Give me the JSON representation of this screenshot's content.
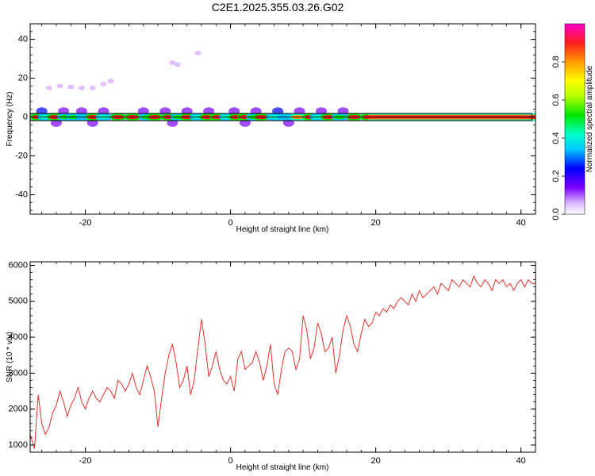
{
  "figure": {
    "title": "C2E1.2025.355.03.26.G02"
  },
  "chart_data": [
    {
      "type": "heatmap",
      "title": "C2E1.2025.355.03.26.G02",
      "xlabel": "Height of straight line (km)",
      "ylabel": "Frequency (Hz)",
      "xlim": [
        -27.6,
        42
      ],
      "ylim": [
        -50,
        48
      ],
      "xticks": [
        -20,
        0,
        20,
        40
      ],
      "yticks": [
        -40,
        -20,
        0,
        20,
        40
      ],
      "grid": false,
      "colorbar": {
        "label": "Normalized spectral amplitude",
        "ticks": [
          0.0,
          0.2,
          0.4,
          0.6,
          0.8
        ],
        "range": [
          0,
          1
        ]
      },
      "model_line_hz": 0,
      "main_band": [
        {
          "x": -26.5,
          "a": 0.95
        },
        {
          "x": -25.5,
          "a": 0.5
        },
        {
          "x": -24.2,
          "a": 0.95
        },
        {
          "x": -22.8,
          "a": 0.55
        },
        {
          "x": -21.5,
          "a": 0.6
        },
        {
          "x": -20.2,
          "a": 0.4
        },
        {
          "x": -18.9,
          "a": 0.95
        },
        {
          "x": -17.5,
          "a": 0.5
        },
        {
          "x": -15.5,
          "a": 0.95
        },
        {
          "x": -13.5,
          "a": 0.95
        },
        {
          "x": -11.5,
          "a": 0.6
        },
        {
          "x": -10.5,
          "a": 0.95
        },
        {
          "x": -8.5,
          "a": 0.9
        },
        {
          "x": -7.2,
          "a": 0.6
        },
        {
          "x": -6.0,
          "a": 0.95
        },
        {
          "x": -4.5,
          "a": 0.5
        },
        {
          "x": -3.2,
          "a": 0.95
        },
        {
          "x": -1.8,
          "a": 0.95
        },
        {
          "x": -0.5,
          "a": 0.5
        },
        {
          "x": 0.8,
          "a": 0.95
        },
        {
          "x": 2.0,
          "a": 0.95
        },
        {
          "x": 3.2,
          "a": 0.6
        },
        {
          "x": 4.2,
          "a": 0.95
        },
        {
          "x": 6.0,
          "a": 0.5
        },
        {
          "x": 7.5,
          "a": 0.4
        },
        {
          "x": 9.2,
          "a": 0.8
        },
        {
          "x": 11.0,
          "a": 0.95
        },
        {
          "x": 12.0,
          "a": 0.5
        },
        {
          "x": 13.5,
          "a": 0.95
        },
        {
          "x": 15.0,
          "a": 0.6
        },
        {
          "x": 17.0,
          "a": 0.95
        },
        {
          "x": 19.0,
          "a": 0.95
        }
      ],
      "side_blobs": [
        {
          "x": -26.0,
          "y": 3,
          "a": 0.25
        },
        {
          "x": -23.0,
          "y": 3,
          "a": 0.2
        },
        {
          "x": -20.5,
          "y": 3,
          "a": 0.22
        },
        {
          "x": -17.5,
          "y": 3,
          "a": 0.2
        },
        {
          "x": -12.0,
          "y": 3,
          "a": 0.2
        },
        {
          "x": -9.0,
          "y": 3,
          "a": 0.18
        },
        {
          "x": -6.0,
          "y": 3,
          "a": 0.2
        },
        {
          "x": -3.0,
          "y": 3,
          "a": 0.18
        },
        {
          "x": 0.5,
          "y": 3,
          "a": 0.22
        },
        {
          "x": 3.5,
          "y": 3,
          "a": 0.22
        },
        {
          "x": 6.5,
          "y": 3,
          "a": 0.25
        },
        {
          "x": 9.5,
          "y": 3,
          "a": 0.2
        },
        {
          "x": 12.5,
          "y": 3,
          "a": 0.18
        },
        {
          "x": 15.5,
          "y": 3,
          "a": 0.15
        },
        {
          "x": -24.0,
          "y": -3,
          "a": 0.2
        },
        {
          "x": -19.0,
          "y": -3,
          "a": 0.2
        },
        {
          "x": -8.0,
          "y": -3,
          "a": 0.18
        },
        {
          "x": 2.0,
          "y": -3,
          "a": 0.2
        },
        {
          "x": 8.0,
          "y": -3,
          "a": 0.22
        }
      ],
      "scattered_blobs": [
        {
          "x": -25.0,
          "y": 15,
          "a": 0.12
        },
        {
          "x": -23.5,
          "y": 16,
          "a": 0.12
        },
        {
          "x": -22.0,
          "y": 15.5,
          "a": 0.1
        },
        {
          "x": -20.5,
          "y": 15,
          "a": 0.1
        },
        {
          "x": -19.0,
          "y": 15,
          "a": 0.08
        },
        {
          "x": -17.5,
          "y": 17,
          "a": 0.08
        },
        {
          "x": -16.5,
          "y": 18.5,
          "a": 0.08
        },
        {
          "x": -4.5,
          "y": 33,
          "a": 0.1
        },
        {
          "x": -8.0,
          "y": 28,
          "a": 0.06
        },
        {
          "x": -7.3,
          "y": 27,
          "a": 0.06
        }
      ]
    },
    {
      "type": "line",
      "xlabel": "Height of straight line (km)",
      "ylabel": "SNR (10 * v/v)",
      "xlim": [
        -27.6,
        42
      ],
      "ylim": [
        800,
        6100
      ],
      "xticks": [
        -20,
        0,
        20,
        40
      ],
      "yticks": [
        1000,
        2000,
        3000,
        4000,
        5000,
        6000
      ],
      "grid": false,
      "color": "#e8302a",
      "series": [
        {
          "x": [
            -27.6,
            -27,
            -26.5,
            -26,
            -25.5,
            -25,
            -24.5,
            -24,
            -23.5,
            -23,
            -22.5,
            -22,
            -21.5,
            -21,
            -20.5,
            -20,
            -19.5,
            -19,
            -18.5,
            -18,
            -17.5,
            -17,
            -16.5,
            -16,
            -15.5,
            -15,
            -14.5,
            -14,
            -13.5,
            -13,
            -12.5,
            -12,
            -11.5,
            -11,
            -10.5,
            -10,
            -9.5,
            -9,
            -8.5,
            -8,
            -7.5,
            -7,
            -6.5,
            -6,
            -5.5,
            -5,
            -4.5,
            -4,
            -3.5,
            -3,
            -2.5,
            -2,
            -1.5,
            -1,
            -0.5,
            0,
            0.5,
            1,
            1.5,
            2,
            2.5,
            3,
            3.5,
            4,
            4.5,
            5,
            5.5,
            6,
            6.5,
            7,
            7.5,
            8,
            8.5,
            9,
            9.5,
            10,
            10.5,
            11,
            11.5,
            12,
            12.5,
            13,
            13.5,
            14,
            14.5,
            15,
            15.5,
            16,
            16.5,
            17,
            17.5,
            18,
            18.5,
            19,
            19.5,
            20,
            20.5,
            21,
            21.5,
            22,
            22.5,
            23,
            23.5,
            24,
            24.5,
            25,
            25.5,
            26,
            26.5,
            27,
            27.5,
            28,
            28.5,
            29,
            29.5,
            30,
            30.5,
            31,
            31.5,
            32,
            32.5,
            33,
            33.5,
            34,
            34.5,
            35,
            35.5,
            36,
            36.5,
            37,
            37.5,
            38,
            38.5,
            39,
            39.5,
            40,
            40.5,
            41,
            41.5,
            42
          ],
          "y": [
            1300,
            900,
            2400,
            1600,
            1300,
            1500,
            1900,
            2100,
            2500,
            2200,
            1800,
            2100,
            2300,
            2600,
            2200,
            2000,
            2300,
            2500,
            2300,
            2200,
            2400,
            2600,
            2500,
            2300,
            2800,
            2700,
            2500,
            2700,
            3000,
            2600,
            2400,
            2800,
            3200,
            2900,
            2500,
            1500,
            2300,
            3000,
            3500,
            3800,
            3300,
            2600,
            2800,
            3200,
            2400,
            2800,
            3700,
            4500,
            3800,
            2900,
            3200,
            3600,
            3100,
            2800,
            2700,
            2900,
            2500,
            3400,
            3600,
            3100,
            3200,
            3300,
            3600,
            3300,
            2800,
            3200,
            3800,
            2700,
            2400,
            3100,
            3600,
            3700,
            3600,
            3100,
            3400,
            4600,
            4200,
            3400,
            3700,
            4400,
            4100,
            3600,
            3700,
            4000,
            3000,
            3500,
            4200,
            4600,
            4300,
            3800,
            3600,
            4100,
            4500,
            4300,
            4400,
            4700,
            4600,
            4800,
            4700,
            4900,
            4800,
            5000,
            5100,
            5000,
            4900,
            5200,
            5000,
            5300,
            5100,
            5200,
            5300,
            5400,
            5200,
            5500,
            5400,
            5300,
            5600,
            5500,
            5400,
            5600,
            5500,
            5400,
            5700,
            5500,
            5400,
            5600,
            5500,
            5300,
            5600,
            5500,
            5600,
            5400,
            5500,
            5300,
            5500,
            5600,
            5400,
            5600,
            5500,
            5500
          ]
        }
      ]
    }
  ]
}
